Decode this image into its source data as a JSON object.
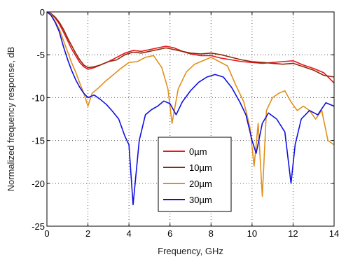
{
  "chart_data": {
    "type": "line",
    "title": "",
    "xlabel": "Frequency, GHz",
    "ylabel": "Normalized frequency response, dB",
    "xlim": [
      0,
      14
    ],
    "ylim": [
      -25,
      0
    ],
    "xticks": [
      0,
      2,
      4,
      6,
      8,
      10,
      12,
      14
    ],
    "yticks": [
      0,
      -5,
      -10,
      -15,
      -20,
      -25
    ],
    "xtick_labels": [
      "0",
      "2",
      "4",
      "6",
      "8",
      "10",
      "12",
      "14"
    ],
    "ytick_labels": [
      "0",
      "-5",
      "-10",
      "-15",
      "-20",
      "-25"
    ],
    "grid": true,
    "legend_position": "center-bottom",
    "series": [
      {
        "name": "0µm",
        "color": "#e8141a",
        "x": [
          0.0,
          0.2,
          0.4,
          0.6,
          0.8,
          1.0,
          1.2,
          1.4,
          1.6,
          1.8,
          2.0,
          2.3,
          2.6,
          3.0,
          3.4,
          3.8,
          4.2,
          4.6,
          5.0,
          5.4,
          5.8,
          6.2,
          6.6,
          7.0,
          7.5,
          8.0,
          8.5,
          9.0,
          9.5,
          10.0,
          10.5,
          11.0,
          11.5,
          12.0,
          12.5,
          13.0,
          13.5,
          14.0
        ],
        "y": [
          0.0,
          -0.2,
          -0.7,
          -1.4,
          -2.3,
          -3.3,
          -4.3,
          -5.1,
          -5.9,
          -6.4,
          -6.7,
          -6.5,
          -6.2,
          -5.8,
          -5.3,
          -4.8,
          -4.5,
          -4.6,
          -4.4,
          -4.2,
          -4.0,
          -4.2,
          -4.6,
          -4.9,
          -5.1,
          -5.1,
          -5.4,
          -5.6,
          -5.8,
          -5.9,
          -6.0,
          -5.9,
          -5.8,
          -5.7,
          -6.2,
          -6.6,
          -7.1,
          -8.3
        ]
      },
      {
        "name": "10µm",
        "color": "#8c2a0a",
        "x": [
          0.0,
          0.2,
          0.4,
          0.6,
          0.8,
          1.0,
          1.2,
          1.4,
          1.6,
          1.8,
          2.0,
          2.3,
          2.6,
          3.0,
          3.4,
          3.8,
          4.2,
          4.6,
          5.0,
          5.4,
          5.8,
          6.2,
          6.6,
          7.0,
          7.5,
          8.0,
          8.5,
          9.0,
          9.5,
          10.0,
          10.5,
          11.0,
          11.5,
          12.0,
          12.5,
          13.0,
          13.5,
          14.0
        ],
        "y": [
          0.0,
          -0.2,
          -0.6,
          -1.2,
          -2.0,
          -3.0,
          -3.9,
          -4.8,
          -5.6,
          -6.2,
          -6.5,
          -6.4,
          -6.2,
          -5.8,
          -5.6,
          -5.0,
          -4.7,
          -4.8,
          -4.6,
          -4.4,
          -4.2,
          -4.4,
          -4.6,
          -4.8,
          -4.9,
          -4.8,
          -5.0,
          -5.3,
          -5.6,
          -5.8,
          -5.9,
          -6.0,
          -6.1,
          -6.0,
          -6.4,
          -6.8,
          -7.4,
          -7.6
        ]
      },
      {
        "name": "20µm",
        "color": "#e0901c",
        "x": [
          0.0,
          0.2,
          0.4,
          0.6,
          0.8,
          1.0,
          1.2,
          1.4,
          1.6,
          1.8,
          2.0,
          2.2,
          2.5,
          2.8,
          3.2,
          3.6,
          4.0,
          4.4,
          4.8,
          5.2,
          5.6,
          5.9,
          6.1,
          6.4,
          6.8,
          7.2,
          7.6,
          8.0,
          8.4,
          8.8,
          9.2,
          9.6,
          9.9,
          10.1,
          10.3,
          10.5,
          10.7,
          11.0,
          11.3,
          11.6,
          11.9,
          12.2,
          12.5,
          12.8,
          13.1,
          13.4,
          13.7,
          14.0
        ],
        "y": [
          0.0,
          -0.3,
          -1.1,
          -2.0,
          -3.3,
          -4.6,
          -5.9,
          -7.0,
          -8.3,
          -9.5,
          -11.0,
          -9.5,
          -8.9,
          -8.2,
          -7.4,
          -6.6,
          -5.9,
          -5.8,
          -5.3,
          -5.1,
          -6.5,
          -9.0,
          -13.0,
          -9.0,
          -7.0,
          -6.1,
          -5.7,
          -5.3,
          -5.8,
          -6.3,
          -8.5,
          -10.5,
          -13.5,
          -18.0,
          -13.0,
          -21.5,
          -11.5,
          -10.0,
          -9.5,
          -9.2,
          -10.5,
          -11.5,
          -11.0,
          -11.5,
          -12.5,
          -11.5,
          -15.0,
          -15.5
        ]
      },
      {
        "name": "30µm",
        "color": "#1010e0",
        "x": [
          0.0,
          0.2,
          0.4,
          0.6,
          0.8,
          1.0,
          1.2,
          1.4,
          1.6,
          1.8,
          2.0,
          2.3,
          2.6,
          2.9,
          3.2,
          3.5,
          3.8,
          4.0,
          4.2,
          4.5,
          4.8,
          5.1,
          5.4,
          5.7,
          6.0,
          6.3,
          6.6,
          7.0,
          7.4,
          7.8,
          8.2,
          8.6,
          9.0,
          9.4,
          9.7,
          10.0,
          10.2,
          10.5,
          10.8,
          11.2,
          11.6,
          11.9,
          12.1,
          12.4,
          12.8,
          13.2,
          13.6,
          14.0
        ],
        "y": [
          0.0,
          -0.4,
          -1.2,
          -2.3,
          -4.0,
          -5.5,
          -6.8,
          -7.9,
          -8.8,
          -9.5,
          -10.0,
          -9.7,
          -10.2,
          -10.8,
          -11.6,
          -12.5,
          -14.5,
          -15.5,
          -22.5,
          -15.0,
          -12.0,
          -11.4,
          -11.0,
          -10.4,
          -10.7,
          -12.0,
          -10.5,
          -9.2,
          -8.2,
          -7.6,
          -7.3,
          -7.6,
          -8.8,
          -10.5,
          -12.0,
          -15.0,
          -16.5,
          -13.0,
          -11.8,
          -12.5,
          -14.0,
          -20.0,
          -15.5,
          -12.5,
          -11.5,
          -12.0,
          -10.6,
          -11.0
        ]
      }
    ]
  }
}
